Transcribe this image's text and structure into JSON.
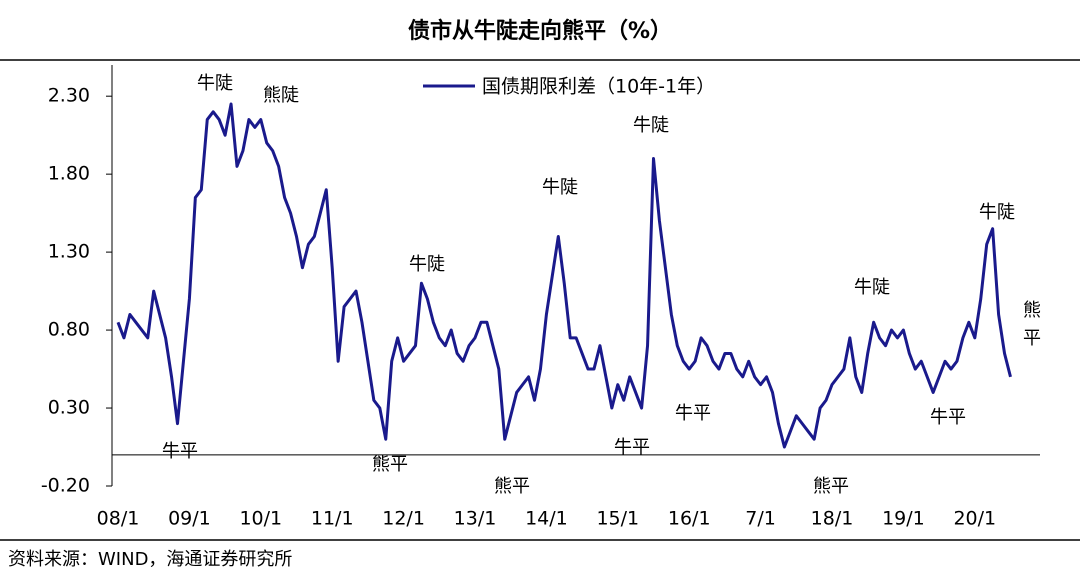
{
  "chart_data": {
    "type": "line",
    "title": "债市从牛陡走向熊平（%）",
    "source": "资料来源：WIND，海通证券研究所",
    "categories": [
      "08/1",
      null,
      null,
      null,
      null,
      null,
      null,
      null,
      null,
      null,
      null,
      null,
      "09/1",
      null,
      null,
      null,
      null,
      null,
      null,
      null,
      null,
      null,
      null,
      null,
      "10/1",
      null,
      null,
      null,
      null,
      null,
      null,
      null,
      null,
      null,
      null,
      null,
      "11/1",
      null,
      null,
      null,
      null,
      null,
      null,
      null,
      null,
      null,
      null,
      null,
      "12/1",
      null,
      null,
      null,
      null,
      null,
      null,
      null,
      null,
      null,
      null,
      null,
      "13/1",
      null,
      null,
      null,
      null,
      null,
      null,
      null,
      null,
      null,
      null,
      null,
      "14/1",
      null,
      null,
      null,
      null,
      null,
      null,
      null,
      null,
      null,
      null,
      null,
      "15/1",
      null,
      null,
      null,
      null,
      null,
      null,
      null,
      null,
      null,
      null,
      null,
      "16/1",
      null,
      null,
      null,
      null,
      null,
      null,
      null,
      null,
      null,
      null,
      null,
      "7/1",
      null,
      null,
      null,
      null,
      null,
      null,
      null,
      null,
      null,
      null,
      null,
      "18/1",
      null,
      null,
      null,
      null,
      null,
      null,
      null,
      null,
      null,
      null,
      null,
      "19/1",
      null,
      null,
      null,
      null,
      null,
      null,
      null,
      null,
      null,
      null,
      null,
      "20/1",
      null,
      null,
      null,
      null,
      null,
      null
    ],
    "series": [
      {
        "name": "国债期限利差（10年-1年）",
        "color": "#1a1a8c",
        "values": [
          0.85,
          0.75,
          0.9,
          0.85,
          0.8,
          0.75,
          1.05,
          0.9,
          0.75,
          0.5,
          0.2,
          0.6,
          1.0,
          1.65,
          1.7,
          2.15,
          2.2,
          2.15,
          2.05,
          2.25,
          1.85,
          1.95,
          2.15,
          2.1,
          2.15,
          2.0,
          1.95,
          1.85,
          1.65,
          1.55,
          1.4,
          1.2,
          1.35,
          1.4,
          1.55,
          1.7,
          1.2,
          0.6,
          0.95,
          1.0,
          1.05,
          0.85,
          0.6,
          0.35,
          0.3,
          0.1,
          0.6,
          0.75,
          0.6,
          0.65,
          0.7,
          1.1,
          1.0,
          0.85,
          0.75,
          0.7,
          0.8,
          0.65,
          0.6,
          0.7,
          0.75,
          0.85,
          0.85,
          0.7,
          0.55,
          0.1,
          0.25,
          0.4,
          0.45,
          0.5,
          0.35,
          0.55,
          0.9,
          1.15,
          1.4,
          1.1,
          0.75,
          0.75,
          0.65,
          0.55,
          0.55,
          0.7,
          0.5,
          0.3,
          0.45,
          0.35,
          0.5,
          0.4,
          0.3,
          0.7,
          1.9,
          1.5,
          1.2,
          0.9,
          0.7,
          0.6,
          0.55,
          0.6,
          0.75,
          0.7,
          0.6,
          0.55,
          0.65,
          0.65,
          0.55,
          0.5,
          0.6,
          0.5,
          0.45,
          0.5,
          0.4,
          0.2,
          0.05,
          0.15,
          0.25,
          0.2,
          0.15,
          0.1,
          0.3,
          0.35,
          0.45,
          0.5,
          0.55,
          0.75,
          0.5,
          0.4,
          0.65,
          0.85,
          0.75,
          0.7,
          0.8,
          0.75,
          0.8,
          0.65,
          0.55,
          0.6,
          0.5,
          0.4,
          0.5,
          0.6,
          0.55,
          0.6,
          0.75,
          0.85,
          0.75,
          1.0,
          1.35,
          1.45,
          0.9,
          0.65,
          0.5
        ]
      }
    ],
    "ylim": [
      -0.2,
      2.5
    ],
    "yticks": [
      {
        "value": 2.3,
        "label": "2.30"
      },
      {
        "value": 1.8,
        "label": "1.80"
      },
      {
        "value": 1.3,
        "label": "1.30"
      },
      {
        "value": 0.8,
        "label": "0.80"
      },
      {
        "value": 0.3,
        "label": "0.30"
      },
      {
        "value": -0.2,
        "label": "-0.20"
      }
    ],
    "annotations": [
      "牛陡",
      "熊陡",
      "牛平",
      "牛陡",
      "熊平",
      "熊平",
      "牛陡",
      "牛陡",
      "牛平",
      "牛平",
      "熊平",
      "牛陡",
      "牛平",
      "牛陡",
      "熊平"
    ],
    "legend": "top"
  }
}
